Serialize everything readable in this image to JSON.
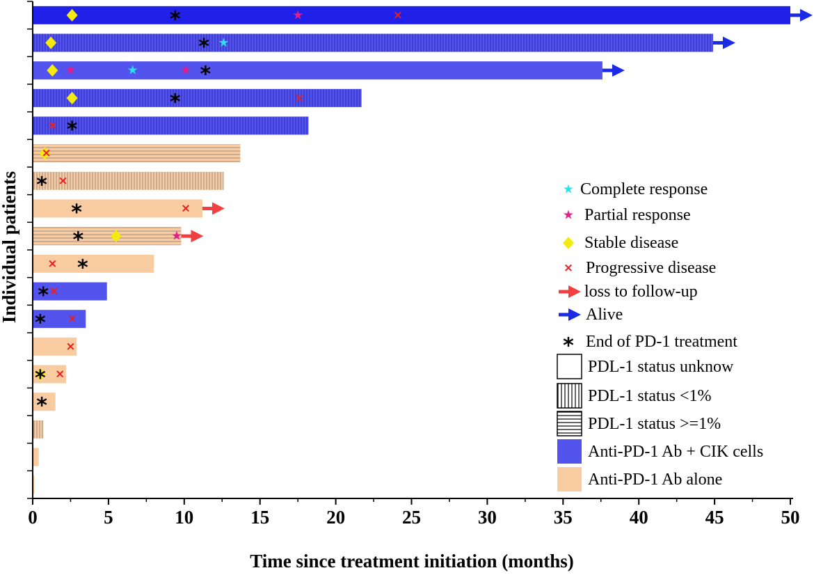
{
  "chart_data": {
    "type": "bar",
    "orientation": "horizontal",
    "xlabel": "Time since treatment initiation (months)",
    "ylabel": "Individual patients",
    "xlim": [
      0,
      50
    ],
    "xticks": [
      0,
      5,
      10,
      15,
      20,
      25,
      30,
      35,
      40,
      45,
      50
    ],
    "colors": {
      "anti_pd1_cik": "#5353ee",
      "anti_pd1_cik_solid": "#2020e8",
      "anti_pd1_alone": "#f9cba0",
      "complete_response": "#2ee0e8",
      "partial_response": "#e0208a",
      "stable_disease": "#f5ea10",
      "progressive_disease": "#e82020",
      "loss_to_followup": "#f04040",
      "alive": "#1a2ae6",
      "end_of_treatment": "#000000"
    },
    "patients": [
      {
        "duration": 50.0,
        "treatment": "cik",
        "pdl1": "unknown",
        "arrow": "alive",
        "events": [
          {
            "type": "stable_disease",
            "t": 2.6
          },
          {
            "type": "end_of_treatment",
            "t": 9.4
          },
          {
            "type": "partial_response",
            "t": 17.5
          },
          {
            "type": "progressive_disease",
            "t": 24.1
          }
        ]
      },
      {
        "duration": 44.9,
        "treatment": "cik",
        "pdl1": "lt1",
        "arrow": "alive",
        "events": [
          {
            "type": "stable_disease",
            "t": 1.2
          },
          {
            "type": "end_of_treatment",
            "t": 11.3
          },
          {
            "type": "complete_response",
            "t": 12.6
          }
        ]
      },
      {
        "duration": 37.6,
        "treatment": "cik",
        "pdl1": "unknown",
        "arrow": "alive",
        "events": [
          {
            "type": "stable_disease",
            "t": 1.3
          },
          {
            "type": "partial_response",
            "t": 2.5
          },
          {
            "type": "complete_response",
            "t": 6.6
          },
          {
            "type": "partial_response",
            "t": 10.1
          },
          {
            "type": "end_of_treatment",
            "t": 11.4
          }
        ]
      },
      {
        "duration": 21.7,
        "treatment": "cik",
        "pdl1": "lt1",
        "arrow": null,
        "events": [
          {
            "type": "stable_disease",
            "t": 2.6
          },
          {
            "type": "end_of_treatment",
            "t": 9.4
          },
          {
            "type": "progressive_disease",
            "t": 17.6
          }
        ]
      },
      {
        "duration": 18.2,
        "treatment": "cik",
        "pdl1": "lt1",
        "arrow": null,
        "events": [
          {
            "type": "progressive_disease",
            "t": 1.3
          },
          {
            "type": "end_of_treatment",
            "t": 2.6
          }
        ]
      },
      {
        "duration": 13.7,
        "treatment": "alone",
        "pdl1": "ge1",
        "arrow": null,
        "events": [
          {
            "type": "stable_disease",
            "t": 0.8
          },
          {
            "type": "progressive_disease",
            "t": 0.9
          }
        ]
      },
      {
        "duration": 12.6,
        "treatment": "alone",
        "pdl1": "lt1",
        "arrow": null,
        "events": [
          {
            "type": "end_of_treatment",
            "t": 0.6
          },
          {
            "type": "progressive_disease",
            "t": 2.0
          }
        ]
      },
      {
        "duration": 11.2,
        "treatment": "alone",
        "pdl1": "unknown",
        "arrow": "loss",
        "events": [
          {
            "type": "end_of_treatment",
            "t": 2.9
          },
          {
            "type": "progressive_disease",
            "t": 10.1
          }
        ]
      },
      {
        "duration": 9.8,
        "treatment": "alone",
        "pdl1": "ge1",
        "arrow": "loss",
        "events": [
          {
            "type": "end_of_treatment",
            "t": 3.0
          },
          {
            "type": "stable_disease",
            "t": 5.5
          },
          {
            "type": "partial_response",
            "t": 9.5
          }
        ]
      },
      {
        "duration": 8.0,
        "treatment": "alone",
        "pdl1": "unknown",
        "arrow": null,
        "events": [
          {
            "type": "progressive_disease",
            "t": 1.3
          },
          {
            "type": "end_of_treatment",
            "t": 3.3
          }
        ]
      },
      {
        "duration": 4.9,
        "treatment": "cik",
        "pdl1": "unknown",
        "arrow": null,
        "events": [
          {
            "type": "end_of_treatment",
            "t": 0.7
          },
          {
            "type": "progressive_disease",
            "t": 1.4
          }
        ]
      },
      {
        "duration": 3.5,
        "treatment": "cik",
        "pdl1": "unknown",
        "arrow": null,
        "events": [
          {
            "type": "end_of_treatment",
            "t": 0.5
          },
          {
            "type": "progressive_disease",
            "t": 2.6
          }
        ]
      },
      {
        "duration": 2.9,
        "treatment": "alone",
        "pdl1": "unknown",
        "arrow": null,
        "events": [
          {
            "type": "progressive_disease",
            "t": 2.5
          }
        ]
      },
      {
        "duration": 2.2,
        "treatment": "alone",
        "pdl1": "unknown",
        "arrow": null,
        "events": [
          {
            "type": "stable_disease",
            "t": 0.5
          },
          {
            "type": "end_of_treatment",
            "t": 0.5
          },
          {
            "type": "progressive_disease",
            "t": 1.8
          }
        ]
      },
      {
        "duration": 1.5,
        "treatment": "alone",
        "pdl1": "unknown",
        "arrow": null,
        "events": [
          {
            "type": "end_of_treatment",
            "t": 0.6
          }
        ]
      },
      {
        "duration": 0.7,
        "treatment": "alone",
        "pdl1": "lt1",
        "arrow": null,
        "events": []
      },
      {
        "duration": 0.4,
        "treatment": "alone",
        "pdl1": "unknown",
        "arrow": null,
        "events": []
      },
      {
        "duration": 0.1,
        "treatment": "alone",
        "pdl1": "unknown",
        "arrow": null,
        "events": []
      }
    ],
    "legend": [
      {
        "key": "complete_response",
        "label": "Complete response"
      },
      {
        "key": "partial_response",
        "label": "Partial response"
      },
      {
        "key": "stable_disease",
        "label": "Stable disease"
      },
      {
        "key": "progressive_disease",
        "label": "Progressive disease"
      },
      {
        "key": "loss_to_followup",
        "label": "loss to follow-up"
      },
      {
        "key": "alive",
        "label": "Alive"
      },
      {
        "key": "end_of_treatment",
        "label": "End of PD-1 treatment"
      },
      {
        "key": "pdl1_unknown",
        "label": "PDL-1 status unknow"
      },
      {
        "key": "pdl1_lt1",
        "label": "PDL-1 status <1%"
      },
      {
        "key": "pdl1_ge1",
        "label": "PDL-1 status >=1%"
      },
      {
        "key": "anti_pd1_cik",
        "label": "Anti-PD-1 Ab + CIK cells"
      },
      {
        "key": "anti_pd1_alone",
        "label": "Anti-PD-1 Ab alone"
      }
    ],
    "legend_position": "right"
  }
}
